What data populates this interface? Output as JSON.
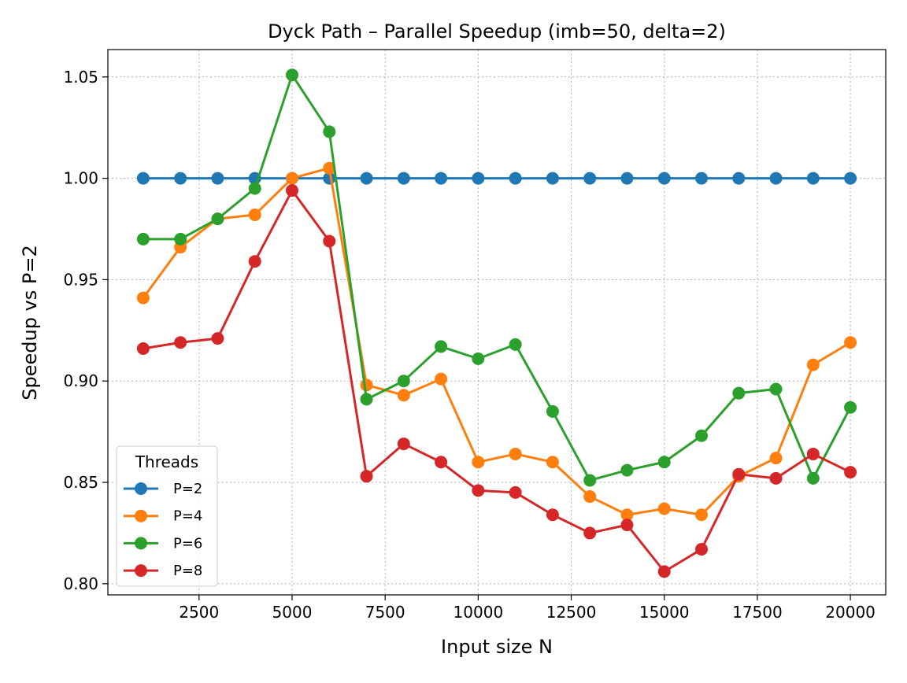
{
  "chart_data": {
    "type": "line",
    "title": "Dyck Path – Parallel Speedup (imb=50, delta=2)",
    "xlabel": "Input size N",
    "ylabel": "Speedup vs P=2",
    "xlim": [
      50,
      20950
    ],
    "ylim": [
      0.7945,
      1.0635
    ],
    "xticks": [
      2500,
      5000,
      7500,
      10000,
      12500,
      15000,
      17500,
      20000
    ],
    "xtick_labels": [
      "2500",
      "5000",
      "7500",
      "10000",
      "12500",
      "15000",
      "17500",
      "20000"
    ],
    "yticks": [
      0.8,
      0.85,
      0.9,
      0.95,
      1.0,
      1.05
    ],
    "ytick_labels": [
      "0.80",
      "0.85",
      "0.90",
      "0.95",
      "1.00",
      "1.05"
    ],
    "grid": true,
    "legend": {
      "title": "Threads",
      "placement": "lower-left"
    },
    "x": [
      1000,
      2000,
      3000,
      4000,
      5000,
      6000,
      7000,
      8000,
      9000,
      10000,
      11000,
      12000,
      13000,
      14000,
      15000,
      16000,
      17000,
      18000,
      19000,
      20000
    ],
    "series": [
      {
        "name": "P=2",
        "color": "#1f77b4",
        "values": [
          1.0,
          1.0,
          1.0,
          1.0,
          1.0,
          1.0,
          1.0,
          1.0,
          1.0,
          1.0,
          1.0,
          1.0,
          1.0,
          1.0,
          1.0,
          1.0,
          1.0,
          1.0,
          1.0,
          1.0
        ]
      },
      {
        "name": "P=4",
        "color": "#ff7f0e",
        "values": [
          0.941,
          0.966,
          0.98,
          0.982,
          1.0,
          1.005,
          0.898,
          0.893,
          0.901,
          0.86,
          0.864,
          0.86,
          0.843,
          0.834,
          0.837,
          0.834,
          0.853,
          0.862,
          0.908,
          0.919
        ]
      },
      {
        "name": "P=6",
        "color": "#2ca02c",
        "values": [
          0.97,
          0.97,
          0.98,
          0.995,
          1.051,
          1.023,
          0.891,
          0.9,
          0.917,
          0.911,
          0.918,
          0.885,
          0.851,
          0.856,
          0.86,
          0.873,
          0.894,
          0.896,
          0.852,
          0.887
        ]
      },
      {
        "name": "P=8",
        "color": "#d62728",
        "values": [
          0.916,
          0.919,
          0.921,
          0.959,
          0.994,
          0.969,
          0.853,
          0.869,
          0.86,
          0.846,
          0.845,
          0.834,
          0.825,
          0.829,
          0.806,
          0.817,
          0.854,
          0.852,
          0.864,
          0.855
        ]
      }
    ]
  }
}
